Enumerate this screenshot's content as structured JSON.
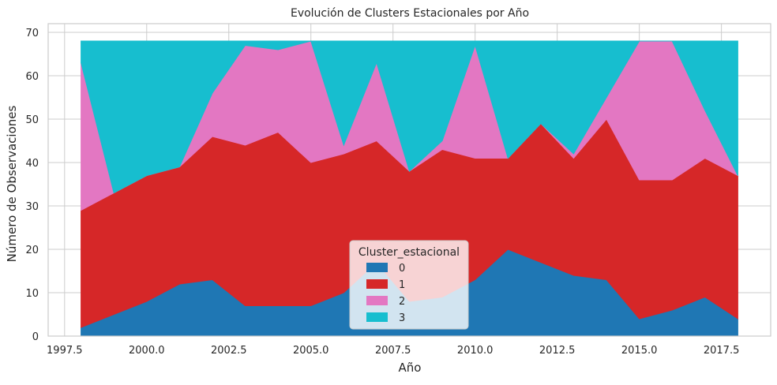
{
  "chart_data": {
    "type": "area",
    "stacked": true,
    "title": "Evolución de Clusters Estacionales por Año",
    "xlabel": "Año",
    "ylabel": "Número de Observaciones",
    "xlim": [
      1997.0,
      2019.0
    ],
    "ylim": [
      0,
      72
    ],
    "xticks": [
      1997.5,
      2000.0,
      2002.5,
      2005.0,
      2007.5,
      2010.0,
      2012.5,
      2015.0,
      2017.5
    ],
    "xtick_labels": [
      "1997.5",
      "2000.0",
      "2002.5",
      "2005.0",
      "2007.5",
      "2010.0",
      "2012.5",
      "2015.0",
      "2017.5"
    ],
    "yticks": [
      0,
      10,
      20,
      30,
      40,
      50,
      60,
      70
    ],
    "ytick_labels": [
      "0",
      "10",
      "20",
      "30",
      "40",
      "50",
      "60",
      "70"
    ],
    "grid": true,
    "legend": {
      "title": "Cluster_estacional",
      "placement": "lower-center"
    },
    "x": [
      1998,
      1999,
      2000,
      2001,
      2002,
      2003,
      2004,
      2005,
      2006,
      2007,
      2008,
      2009,
      2010,
      2011,
      2012,
      2013,
      2014,
      2015,
      2016,
      2017,
      2018
    ],
    "series": [
      {
        "name": "0",
        "color": "#1f77b4",
        "values": [
          2,
          5,
          8,
          12,
          13,
          7,
          7,
          7,
          10,
          17,
          8,
          9,
          13,
          20,
          17,
          14,
          13,
          4,
          6,
          9,
          4
        ]
      },
      {
        "name": "1",
        "color": "#d62728",
        "values": [
          27,
          28,
          29,
          27,
          33,
          37,
          40,
          33,
          32,
          28,
          30,
          34,
          28,
          21,
          32,
          27,
          37,
          32,
          30,
          32,
          33
        ]
      },
      {
        "name": "2",
        "color": "#e377c2",
        "values": [
          34,
          0,
          0,
          0,
          10,
          23,
          19,
          28,
          2,
          18,
          0,
          2,
          26,
          0,
          0,
          1,
          5,
          32,
          32,
          11,
          0
        ]
      },
      {
        "name": "3",
        "color": "#17becf",
        "values": [
          5,
          35,
          31,
          29,
          12,
          1,
          2,
          0,
          24,
          5,
          30,
          23,
          1,
          27,
          19,
          26,
          13,
          0,
          0,
          16,
          31
        ]
      }
    ]
  }
}
